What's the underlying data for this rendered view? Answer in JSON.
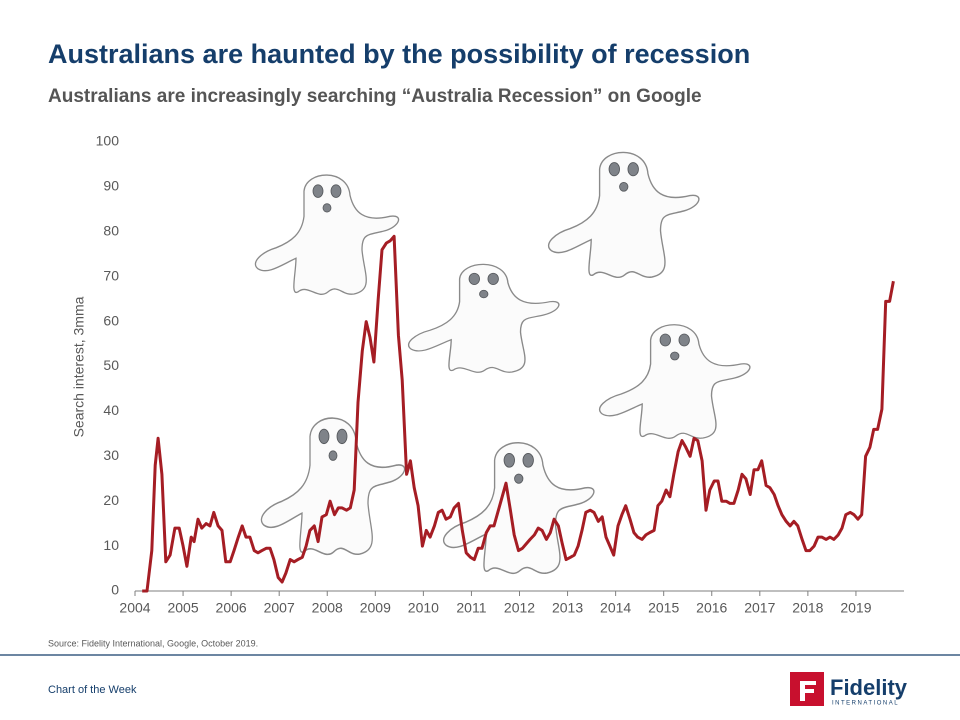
{
  "page": {
    "title": "Australians are haunted by the possibility of recession",
    "subtitle": "Australians are increasingly searching “Australia Recession” on Google",
    "source": "Source: Fidelity International, Google, October 2019.",
    "footer": "Chart of the Week",
    "logo": {
      "name": "Fidelity",
      "sub": "INTERNATIONAL"
    }
  },
  "chart_data": {
    "type": "line",
    "ylabel": "Search interest, 3mma",
    "color": "#a51d24",
    "xlim": [
      2004,
      2020
    ],
    "xticks": [
      2004,
      2005,
      2006,
      2007,
      2008,
      2009,
      2010,
      2011,
      2012,
      2013,
      2014,
      2015,
      2016,
      2017,
      2018,
      2019
    ],
    "ylim": [
      0,
      100
    ],
    "yticks": [
      0,
      10,
      20,
      30,
      40,
      50,
      60,
      70,
      80,
      90,
      100
    ],
    "grid": false,
    "x": [
      2004.15,
      2004.25,
      2004.35,
      2004.42,
      2004.48,
      2004.56,
      2004.64,
      2004.73,
      2004.83,
      2004.92,
      2005.0,
      2005.08,
      2005.17,
      2005.23,
      2005.31,
      2005.39,
      2005.48,
      2005.56,
      2005.64,
      2005.73,
      2005.81,
      2005.89,
      2005.98,
      2006.06,
      2006.15,
      2006.23,
      2006.31,
      2006.39,
      2006.48,
      2006.56,
      2006.64,
      2006.73,
      2006.81,
      2006.89,
      2006.98,
      2007.06,
      2007.14,
      2007.23,
      2007.31,
      2007.39,
      2007.48,
      2007.56,
      2007.64,
      2007.73,
      2007.81,
      2007.89,
      2007.98,
      2008.06,
      2008.15,
      2008.23,
      2008.31,
      2008.4,
      2008.48,
      2008.56,
      2008.64,
      2008.73,
      2008.81,
      2008.89,
      2008.97,
      2009.06,
      2009.14,
      2009.23,
      2009.31,
      2009.39,
      2009.48,
      2009.56,
      2009.65,
      2009.73,
      2009.81,
      2009.89,
      2009.98,
      2010.06,
      2010.14,
      2010.23,
      2010.31,
      2010.39,
      2010.47,
      2010.56,
      2010.64,
      2010.73,
      2010.81,
      2010.89,
      2010.98,
      2011.06,
      2011.14,
      2011.22,
      2011.31,
      2011.39,
      2011.47,
      2011.56,
      2011.64,
      2011.72,
      2011.81,
      2011.89,
      2011.98,
      2012.06,
      2012.14,
      2012.22,
      2012.31,
      2012.39,
      2012.47,
      2012.56,
      2012.64,
      2012.72,
      2012.81,
      2012.89,
      2012.97,
      2013.06,
      2013.14,
      2013.22,
      2013.3,
      2013.38,
      2013.47,
      2013.55,
      2013.64,
      2013.72,
      2013.8,
      2013.88,
      2013.96,
      2014.05,
      2014.13,
      2014.21,
      2014.3,
      2014.38,
      2014.46,
      2014.55,
      2014.63,
      2014.71,
      2014.8,
      2014.88,
      2014.96,
      2015.05,
      2015.13,
      2015.21,
      2015.3,
      2015.38,
      2015.46,
      2015.55,
      2015.63,
      2015.71,
      2015.8,
      2015.88,
      2015.96,
      2016.05,
      2016.13,
      2016.21,
      2016.3,
      2016.38,
      2016.46,
      2016.55,
      2016.63,
      2016.71,
      2016.8,
      2016.88,
      2016.96,
      2017.04,
      2017.13,
      2017.21,
      2017.3,
      2017.38,
      2017.46,
      2017.55,
      2017.63,
      2017.71,
      2017.79,
      2017.88,
      2017.96,
      2018.04,
      2018.13,
      2018.21,
      2018.29,
      2018.38,
      2018.46,
      2018.54,
      2018.63,
      2018.71,
      2018.79,
      2018.88,
      2018.96,
      2019.04,
      2019.12,
      2019.2,
      2019.29,
      2019.37,
      2019.45,
      2019.54,
      2019.62,
      2019.7,
      2019.78
    ],
    "values": [
      0,
      0,
      9,
      28,
      34,
      26,
      6.5,
      8,
      14,
      14,
      10,
      5.5,
      12,
      11,
      16,
      14,
      15,
      14.5,
      17.5,
      14.5,
      13.5,
      6.5,
      6.5,
      9,
      12,
      14.5,
      12,
      12,
      9,
      8.5,
      9,
      9.5,
      9.5,
      7,
      3,
      2,
      4,
      7,
      6.5,
      7,
      7.5,
      10,
      13.5,
      14.5,
      11,
      16.5,
      17,
      20,
      17,
      18.5,
      18.5,
      18,
      18.5,
      22.5,
      42,
      53.5,
      60,
      56.5,
      51,
      65,
      76,
      77.5,
      78,
      79,
      57,
      47,
      26,
      29,
      23,
      19,
      10,
      13.5,
      12,
      14.5,
      17.5,
      18,
      16,
      16.5,
      18.5,
      19.5,
      13.5,
      8.5,
      7.5,
      7,
      9.5,
      9.5,
      13,
      14.5,
      14.5,
      18,
      21,
      24,
      18,
      12.5,
      9,
      9.5,
      10.5,
      11.5,
      12.5,
      14,
      13.5,
      11.5,
      13,
      16,
      14.5,
      10.5,
      7,
      7.5,
      8,
      10,
      13.5,
      17.5,
      18,
      17.5,
      15.5,
      16.5,
      12,
      10,
      8,
      14.5,
      17,
      19,
      16,
      13,
      12,
      11.5,
      12.5,
      13,
      13.5,
      19,
      20,
      22.5,
      21,
      26,
      31,
      33.5,
      32,
      30,
      34,
      33.5,
      29,
      18,
      22.5,
      24.5,
      24.5,
      20,
      20,
      19.5,
      19.5,
      22.5,
      26,
      25,
      21.5,
      27,
      27,
      29,
      23.5,
      23,
      21.5,
      19,
      17,
      15.5,
      14.5,
      15.5,
      14.5,
      11.5,
      9,
      9,
      10,
      12,
      12,
      11.5,
      12,
      11.5,
      12.5,
      14,
      17,
      17.5,
      17,
      16,
      17,
      30,
      32,
      36,
      36,
      40.5,
      64.5,
      64.5,
      69
    ]
  }
}
